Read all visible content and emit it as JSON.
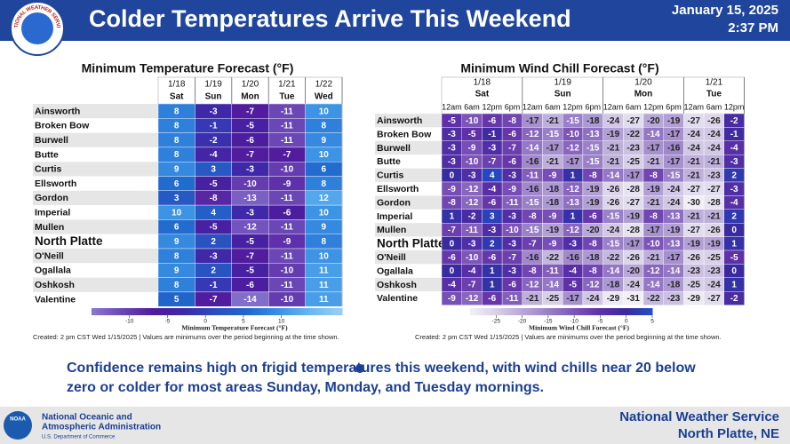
{
  "header": {
    "title": "Colder Temperatures Arrive This Weekend",
    "date": "January 15, 2025",
    "time": "2:37 PM",
    "logo_text": "NATIONAL WEATHER SERVICE"
  },
  "temperature_table": {
    "title": "Minimum Temperature Forecast (°F)",
    "columns": [
      {
        "date": "1/18",
        "day": "Sat"
      },
      {
        "date": "1/19",
        "day": "Sun"
      },
      {
        "date": "1/20",
        "day": "Mon"
      },
      {
        "date": "1/21",
        "day": "Tue"
      },
      {
        "date": "1/22",
        "day": "Wed"
      }
    ],
    "rows": [
      {
        "location": "Ainsworth",
        "values": [
          8,
          -3,
          -7,
          -11,
          10
        ]
      },
      {
        "location": "Broken Bow",
        "values": [
          8,
          -1,
          -5,
          -11,
          8
        ]
      },
      {
        "location": "Burwell",
        "values": [
          8,
          -2,
          -6,
          -11,
          9
        ]
      },
      {
        "location": "Butte",
        "values": [
          8,
          -4,
          -7,
          -7,
          10
        ]
      },
      {
        "location": "Curtis",
        "values": [
          9,
          3,
          -3,
          -10,
          6
        ]
      },
      {
        "location": "Ellsworth",
        "values": [
          6,
          -5,
          -10,
          -9,
          8
        ]
      },
      {
        "location": "Gordon",
        "values": [
          3,
          -8,
          -13,
          -11,
          12
        ]
      },
      {
        "location": "Imperial",
        "values": [
          10,
          4,
          -3,
          -6,
          10
        ]
      },
      {
        "location": "Mullen",
        "values": [
          6,
          -5,
          -12,
          -11,
          9
        ]
      },
      {
        "location": "North Platte",
        "values": [
          9,
          2,
          -5,
          -9,
          8
        ]
      },
      {
        "location": "O'Neill",
        "values": [
          8,
          -3,
          -7,
          -11,
          10
        ]
      },
      {
        "location": "Ogallala",
        "values": [
          9,
          2,
          -5,
          -10,
          11
        ]
      },
      {
        "location": "Oshkosh",
        "values": [
          8,
          -1,
          -6,
          -11,
          11
        ]
      },
      {
        "location": "Valentine",
        "values": [
          5,
          -7,
          -14,
          -10,
          11
        ]
      }
    ],
    "colorbar": {
      "label": "Minimum Temperature Forecast (°F)",
      "range": [
        -15,
        18
      ],
      "ticks": [
        -10,
        -5,
        0,
        5,
        10
      ],
      "colors": [
        "#8a7ad0",
        "#6a45b5",
        "#4f1a9c",
        "#3d2aaa",
        "#2a50c0",
        "#1f68cc",
        "#3a92e4",
        "#6ab8f0",
        "#9ad0f5"
      ]
    },
    "note": "Created: 2 pm CST Wed 1/15/2025  |  Values are minimums over the period beginning at the time shown."
  },
  "wind_chill_table": {
    "title": "Minimum Wind Chill Forecast (°F)",
    "groups": [
      {
        "date": "1/18",
        "day": "Sat",
        "times": [
          "12am",
          "6am",
          "12pm",
          "6pm"
        ]
      },
      {
        "date": "1/19",
        "day": "Sun",
        "times": [
          "12am",
          "6am",
          "12pm",
          "6pm"
        ]
      },
      {
        "date": "1/20",
        "day": "Mon",
        "times": [
          "12am",
          "6am",
          "12pm",
          "6pm"
        ]
      },
      {
        "date": "1/21",
        "day": "Tue",
        "times": [
          "12am",
          "6am",
          "12pm"
        ]
      }
    ],
    "rows": [
      {
        "location": "Ainsworth",
        "values": [
          -5,
          -10,
          -6,
          -8,
          -17,
          -21,
          -15,
          -18,
          -24,
          -27,
          -20,
          -19,
          -27,
          -26,
          -2
        ]
      },
      {
        "location": "Broken Bow",
        "values": [
          -3,
          -5,
          -1,
          -6,
          -12,
          -15,
          -10,
          -13,
          -19,
          -22,
          -14,
          -17,
          -24,
          -24,
          -1
        ]
      },
      {
        "location": "Burwell",
        "values": [
          -3,
          -9,
          -3,
          -7,
          -14,
          -17,
          -12,
          -15,
          -21,
          -23,
          -17,
          -16,
          -24,
          -24,
          -4
        ]
      },
      {
        "location": "Butte",
        "values": [
          -3,
          -10,
          -7,
          -6,
          -16,
          -21,
          -17,
          -15,
          -21,
          -25,
          -21,
          -17,
          -21,
          -21,
          -3
        ]
      },
      {
        "location": "Curtis",
        "values": [
          0,
          -3,
          4,
          -3,
          -11,
          -9,
          1,
          -8,
          -14,
          -17,
          -8,
          -15,
          -21,
          -23,
          2
        ]
      },
      {
        "location": "Ellsworth",
        "values": [
          -9,
          -12,
          -4,
          -9,
          -16,
          -18,
          -12,
          -19,
          -26,
          -28,
          -19,
          -24,
          -27,
          -27,
          -3
        ]
      },
      {
        "location": "Gordon",
        "values": [
          -8,
          -12,
          -6,
          -11,
          -15,
          -18,
          -13,
          -19,
          -26,
          -27,
          -21,
          -24,
          -30,
          -28,
          -4
        ]
      },
      {
        "location": "Imperial",
        "values": [
          1,
          -2,
          3,
          -3,
          -8,
          -9,
          1,
          -6,
          -15,
          -19,
          -8,
          -13,
          -21,
          -21,
          2
        ]
      },
      {
        "location": "Mullen",
        "values": [
          -7,
          -11,
          -3,
          -10,
          -15,
          -19,
          -12,
          -20,
          -24,
          -28,
          -17,
          -19,
          -27,
          -26,
          0
        ]
      },
      {
        "location": "North Platte",
        "values": [
          0,
          -3,
          2,
          -3,
          -7,
          -9,
          -3,
          -8,
          -15,
          -17,
          -10,
          -13,
          -19,
          -19,
          1
        ]
      },
      {
        "location": "O'Neill",
        "values": [
          -6,
          -10,
          -6,
          -7,
          -16,
          -22,
          -16,
          -18,
          -22,
          -26,
          -21,
          -17,
          -26,
          -25,
          -5
        ]
      },
      {
        "location": "Ogallala",
        "values": [
          0,
          -4,
          1,
          -3,
          -8,
          -11,
          -4,
          -8,
          -14,
          -20,
          -12,
          -14,
          -23,
          -23,
          0
        ]
      },
      {
        "location": "Oshkosh",
        "values": [
          -4,
          -7,
          1,
          -6,
          -12,
          -14,
          -5,
          -12,
          -18,
          -24,
          -14,
          -18,
          -25,
          -24,
          1
        ]
      },
      {
        "location": "Valentine",
        "values": [
          -9,
          -12,
          -6,
          -11,
          -21,
          -25,
          -17,
          -24,
          -29,
          -31,
          -22,
          -23,
          -29,
          -27,
          -2
        ]
      }
    ],
    "colorbar": {
      "label": "Minimum Wind Chill Forecast (°F)",
      "range": [
        -30,
        5
      ],
      "ticks": [
        -25,
        -20,
        -15,
        -10,
        -5,
        0,
        5
      ],
      "colors": [
        "#f2f0f6",
        "#d8d0e8",
        "#b8a8d8",
        "#9a80c8",
        "#7d55b8",
        "#5f30a8",
        "#3a2aa0",
        "#2050c8"
      ]
    },
    "note": "Created: 2 pm CST Wed 1/15/2025  |  Values are minimums over the period beginning at the time shown."
  },
  "bullet": "Confidence remains high on frigid temperatures this weekend, with wind chills near 20 below zero or colder for most areas Sunday, Monday, and Tuesday mornings.",
  "footer": {
    "noaa_logo": "NOAA",
    "agency_line1": "National Oceanic and",
    "agency_line2": "Atmospheric Administration",
    "department": "U.S. Department of Commerce",
    "office": "National Weather Service",
    "location": "North Platte, NE"
  }
}
